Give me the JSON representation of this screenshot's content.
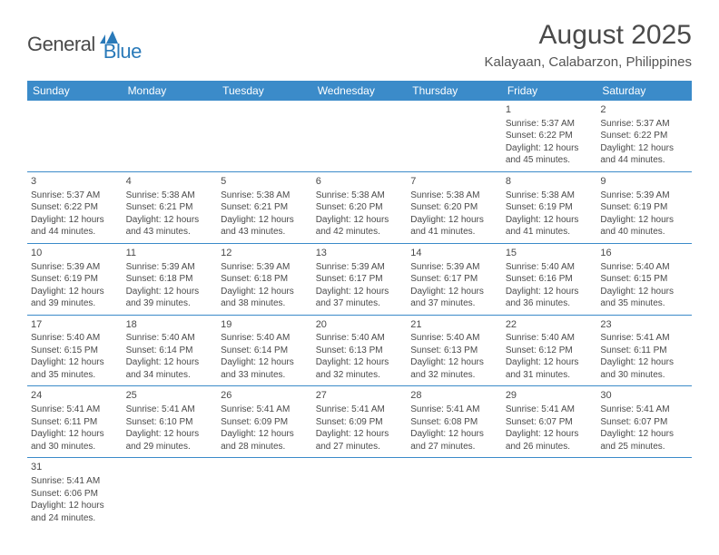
{
  "logo": {
    "dark": "General",
    "blue": "Blue"
  },
  "title": "August 2025",
  "location": "Kalayaan, Calabarzon, Philippines",
  "colors": {
    "header_bg": "#3b8bc9",
    "header_text": "#ffffff",
    "cell_border": "#3b8bc9",
    "text": "#4a4a4a",
    "logo_dark": "#4a4a4a",
    "logo_blue": "#2a7ab9",
    "page_bg": "#ffffff"
  },
  "typography": {
    "title_fontsize": 30,
    "location_fontsize": 15,
    "header_fontsize": 12,
    "cell_fontsize": 10,
    "logo_fontsize": 22
  },
  "weekdays": [
    "Sunday",
    "Monday",
    "Tuesday",
    "Wednesday",
    "Thursday",
    "Friday",
    "Saturday"
  ],
  "weeks": [
    [
      null,
      null,
      null,
      null,
      null,
      {
        "n": "1",
        "l1": "Sunrise: 5:37 AM",
        "l2": "Sunset: 6:22 PM",
        "l3": "Daylight: 12 hours",
        "l4": "and 45 minutes."
      },
      {
        "n": "2",
        "l1": "Sunrise: 5:37 AM",
        "l2": "Sunset: 6:22 PM",
        "l3": "Daylight: 12 hours",
        "l4": "and 44 minutes."
      }
    ],
    [
      {
        "n": "3",
        "l1": "Sunrise: 5:37 AM",
        "l2": "Sunset: 6:22 PM",
        "l3": "Daylight: 12 hours",
        "l4": "and 44 minutes."
      },
      {
        "n": "4",
        "l1": "Sunrise: 5:38 AM",
        "l2": "Sunset: 6:21 PM",
        "l3": "Daylight: 12 hours",
        "l4": "and 43 minutes."
      },
      {
        "n": "5",
        "l1": "Sunrise: 5:38 AM",
        "l2": "Sunset: 6:21 PM",
        "l3": "Daylight: 12 hours",
        "l4": "and 43 minutes."
      },
      {
        "n": "6",
        "l1": "Sunrise: 5:38 AM",
        "l2": "Sunset: 6:20 PM",
        "l3": "Daylight: 12 hours",
        "l4": "and 42 minutes."
      },
      {
        "n": "7",
        "l1": "Sunrise: 5:38 AM",
        "l2": "Sunset: 6:20 PM",
        "l3": "Daylight: 12 hours",
        "l4": "and 41 minutes."
      },
      {
        "n": "8",
        "l1": "Sunrise: 5:38 AM",
        "l2": "Sunset: 6:19 PM",
        "l3": "Daylight: 12 hours",
        "l4": "and 41 minutes."
      },
      {
        "n": "9",
        "l1": "Sunrise: 5:39 AM",
        "l2": "Sunset: 6:19 PM",
        "l3": "Daylight: 12 hours",
        "l4": "and 40 minutes."
      }
    ],
    [
      {
        "n": "10",
        "l1": "Sunrise: 5:39 AM",
        "l2": "Sunset: 6:19 PM",
        "l3": "Daylight: 12 hours",
        "l4": "and 39 minutes."
      },
      {
        "n": "11",
        "l1": "Sunrise: 5:39 AM",
        "l2": "Sunset: 6:18 PM",
        "l3": "Daylight: 12 hours",
        "l4": "and 39 minutes."
      },
      {
        "n": "12",
        "l1": "Sunrise: 5:39 AM",
        "l2": "Sunset: 6:18 PM",
        "l3": "Daylight: 12 hours",
        "l4": "and 38 minutes."
      },
      {
        "n": "13",
        "l1": "Sunrise: 5:39 AM",
        "l2": "Sunset: 6:17 PM",
        "l3": "Daylight: 12 hours",
        "l4": "and 37 minutes."
      },
      {
        "n": "14",
        "l1": "Sunrise: 5:39 AM",
        "l2": "Sunset: 6:17 PM",
        "l3": "Daylight: 12 hours",
        "l4": "and 37 minutes."
      },
      {
        "n": "15",
        "l1": "Sunrise: 5:40 AM",
        "l2": "Sunset: 6:16 PM",
        "l3": "Daylight: 12 hours",
        "l4": "and 36 minutes."
      },
      {
        "n": "16",
        "l1": "Sunrise: 5:40 AM",
        "l2": "Sunset: 6:15 PM",
        "l3": "Daylight: 12 hours",
        "l4": "and 35 minutes."
      }
    ],
    [
      {
        "n": "17",
        "l1": "Sunrise: 5:40 AM",
        "l2": "Sunset: 6:15 PM",
        "l3": "Daylight: 12 hours",
        "l4": "and 35 minutes."
      },
      {
        "n": "18",
        "l1": "Sunrise: 5:40 AM",
        "l2": "Sunset: 6:14 PM",
        "l3": "Daylight: 12 hours",
        "l4": "and 34 minutes."
      },
      {
        "n": "19",
        "l1": "Sunrise: 5:40 AM",
        "l2": "Sunset: 6:14 PM",
        "l3": "Daylight: 12 hours",
        "l4": "and 33 minutes."
      },
      {
        "n": "20",
        "l1": "Sunrise: 5:40 AM",
        "l2": "Sunset: 6:13 PM",
        "l3": "Daylight: 12 hours",
        "l4": "and 32 minutes."
      },
      {
        "n": "21",
        "l1": "Sunrise: 5:40 AM",
        "l2": "Sunset: 6:13 PM",
        "l3": "Daylight: 12 hours",
        "l4": "and 32 minutes."
      },
      {
        "n": "22",
        "l1": "Sunrise: 5:40 AM",
        "l2": "Sunset: 6:12 PM",
        "l3": "Daylight: 12 hours",
        "l4": "and 31 minutes."
      },
      {
        "n": "23",
        "l1": "Sunrise: 5:41 AM",
        "l2": "Sunset: 6:11 PM",
        "l3": "Daylight: 12 hours",
        "l4": "and 30 minutes."
      }
    ],
    [
      {
        "n": "24",
        "l1": "Sunrise: 5:41 AM",
        "l2": "Sunset: 6:11 PM",
        "l3": "Daylight: 12 hours",
        "l4": "and 30 minutes."
      },
      {
        "n": "25",
        "l1": "Sunrise: 5:41 AM",
        "l2": "Sunset: 6:10 PM",
        "l3": "Daylight: 12 hours",
        "l4": "and 29 minutes."
      },
      {
        "n": "26",
        "l1": "Sunrise: 5:41 AM",
        "l2": "Sunset: 6:09 PM",
        "l3": "Daylight: 12 hours",
        "l4": "and 28 minutes."
      },
      {
        "n": "27",
        "l1": "Sunrise: 5:41 AM",
        "l2": "Sunset: 6:09 PM",
        "l3": "Daylight: 12 hours",
        "l4": "and 27 minutes."
      },
      {
        "n": "28",
        "l1": "Sunrise: 5:41 AM",
        "l2": "Sunset: 6:08 PM",
        "l3": "Daylight: 12 hours",
        "l4": "and 27 minutes."
      },
      {
        "n": "29",
        "l1": "Sunrise: 5:41 AM",
        "l2": "Sunset: 6:07 PM",
        "l3": "Daylight: 12 hours",
        "l4": "and 26 minutes."
      },
      {
        "n": "30",
        "l1": "Sunrise: 5:41 AM",
        "l2": "Sunset: 6:07 PM",
        "l3": "Daylight: 12 hours",
        "l4": "and 25 minutes."
      }
    ],
    [
      {
        "n": "31",
        "l1": "Sunrise: 5:41 AM",
        "l2": "Sunset: 6:06 PM",
        "l3": "Daylight: 12 hours",
        "l4": "and 24 minutes."
      },
      null,
      null,
      null,
      null,
      null,
      null
    ]
  ]
}
